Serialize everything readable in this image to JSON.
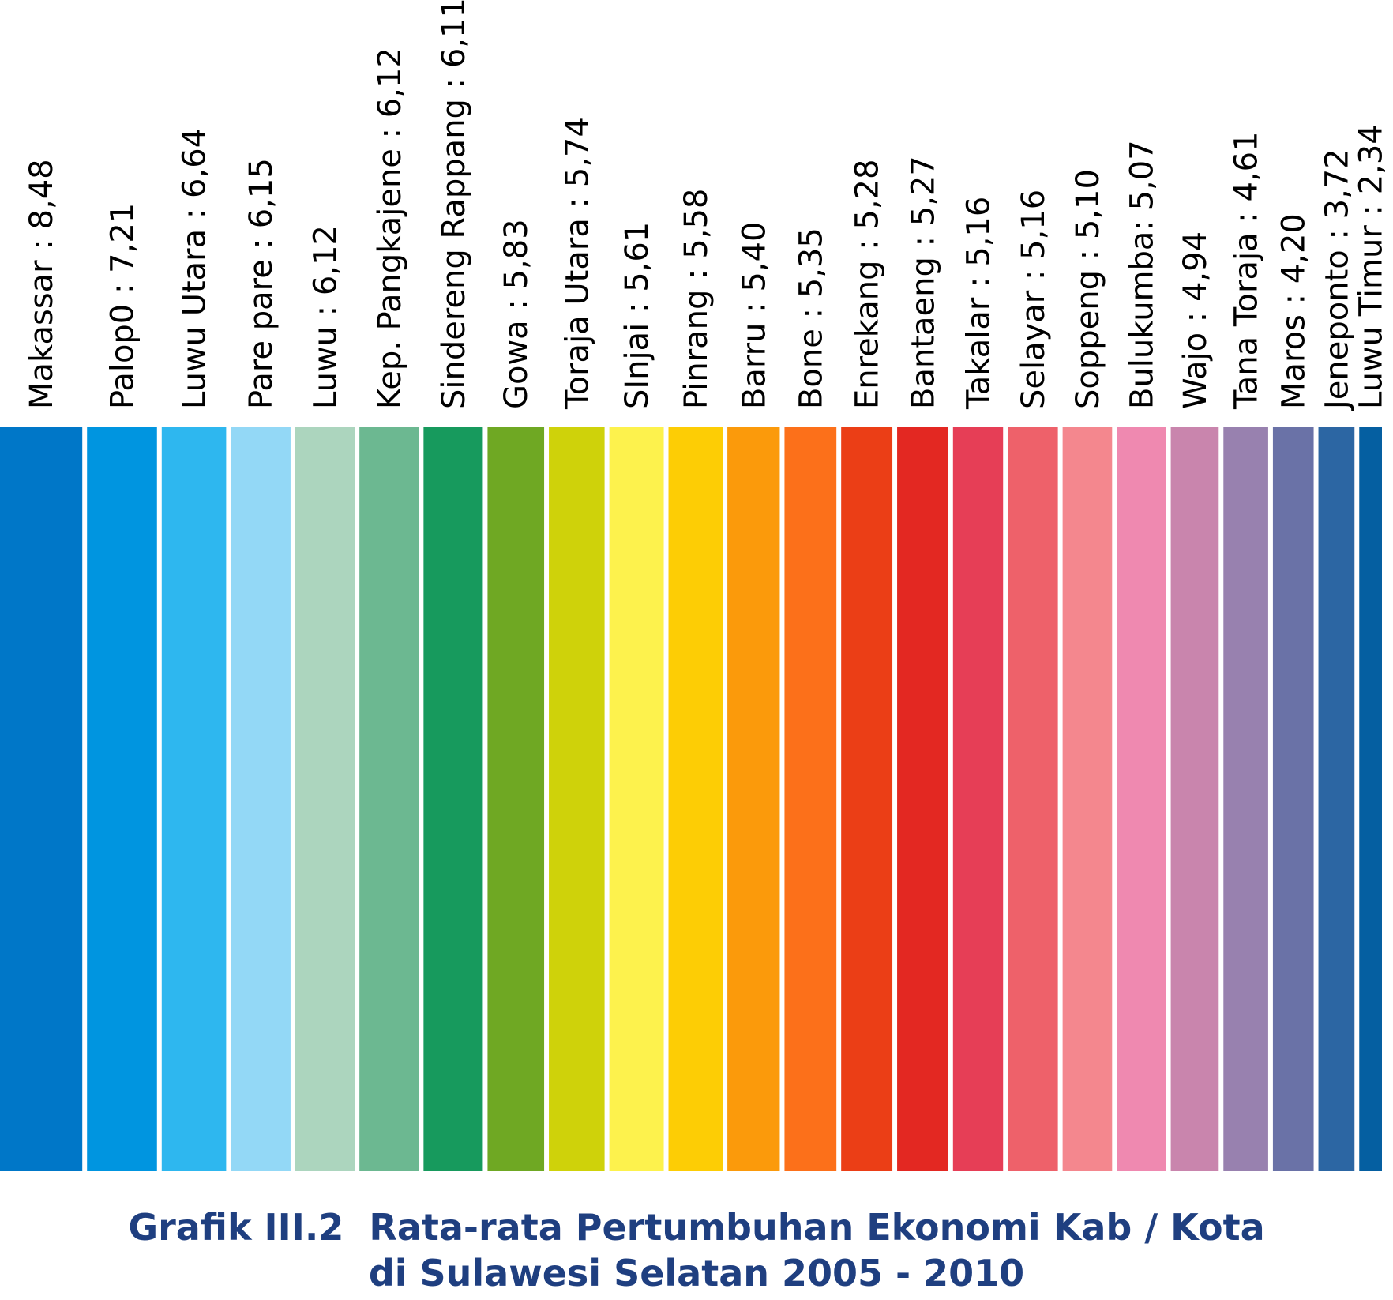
{
  "chart_data": {
    "type": "bar",
    "title": "Grafik III.2  Rata-rata Pertumbuhan Ekonomi Kab / Kota",
    "subtitle": "di Sulawesi Selatan 2005 - 2010",
    "bar_label_separator": " : ",
    "categories": [
      "Makassar",
      "Palop0",
      "Luwu Utara",
      "Pare pare",
      "Luwu",
      "Kep. Pangkajene",
      "Sindereng Rappang",
      "Gowa",
      "Toraja Utara",
      "SInjai",
      "Pinrang",
      "Barru",
      "Bone",
      "Enrekang",
      "Bantaeng",
      "Takalar",
      "Selayar",
      "Soppeng",
      "Bulukumba",
      "Wajo",
      "Tana Toraja",
      "Maros",
      "Jeneponto",
      "Luwu Timur"
    ],
    "values": [
      8.48,
      7.21,
      6.64,
      6.15,
      6.12,
      6.12,
      6.11,
      5.83,
      5.74,
      5.61,
      5.58,
      5.4,
      5.35,
      5.28,
      5.27,
      5.16,
      5.16,
      5.1,
      5.07,
      4.94,
      4.61,
      4.2,
      3.72,
      2.34
    ],
    "bar_labels": [
      "Makassar : 8,48",
      "Palop0 : 7,21",
      "Luwu Utara : 6,64",
      "Pare pare : 6,15",
      "Luwu : 6,12",
      "Kep. Pangkajene : 6,12",
      "Sindereng Rappang : 6,11",
      "Gowa : 5,83",
      "Toraja Utara : 5,74",
      "SInjai : 5,61",
      "Pinrang : 5,58",
      "Barru : 5,40",
      "Bone : 5,35",
      "Enrekang : 5,28",
      "Bantaeng : 5,27",
      "Takalar : 5,16",
      "Selayar : 5,16",
      "Soppeng : 5,10",
      "Bulukumba: 5,07",
      "Wajo : 4,94",
      "Tana Toraja : 4,61",
      "Maros : 4,20",
      "Jeneponto : 3,72",
      "Luwu Timur : 2,34"
    ],
    "encoding": "value shown as bar width; all bars same height",
    "colors": [
      "#0077c8",
      "#0095e0",
      "#2eb7ef",
      "#93d8f6",
      "#acd5be",
      "#6cb891",
      "#179a5d",
      "#6fa823",
      "#cfd20a",
      "#fdf24d",
      "#fdcd05",
      "#fb9a0b",
      "#fc701a",
      "#eb3e16",
      "#e32822",
      "#e63e56",
      "#ee616a",
      "#f4878e",
      "#ef89b0",
      "#c985ad",
      "#9881af",
      "#6a72a7",
      "#2c66a3",
      "#055fa1"
    ],
    "xlabel": "",
    "ylabel": "",
    "grid": false,
    "legend": "none"
  }
}
